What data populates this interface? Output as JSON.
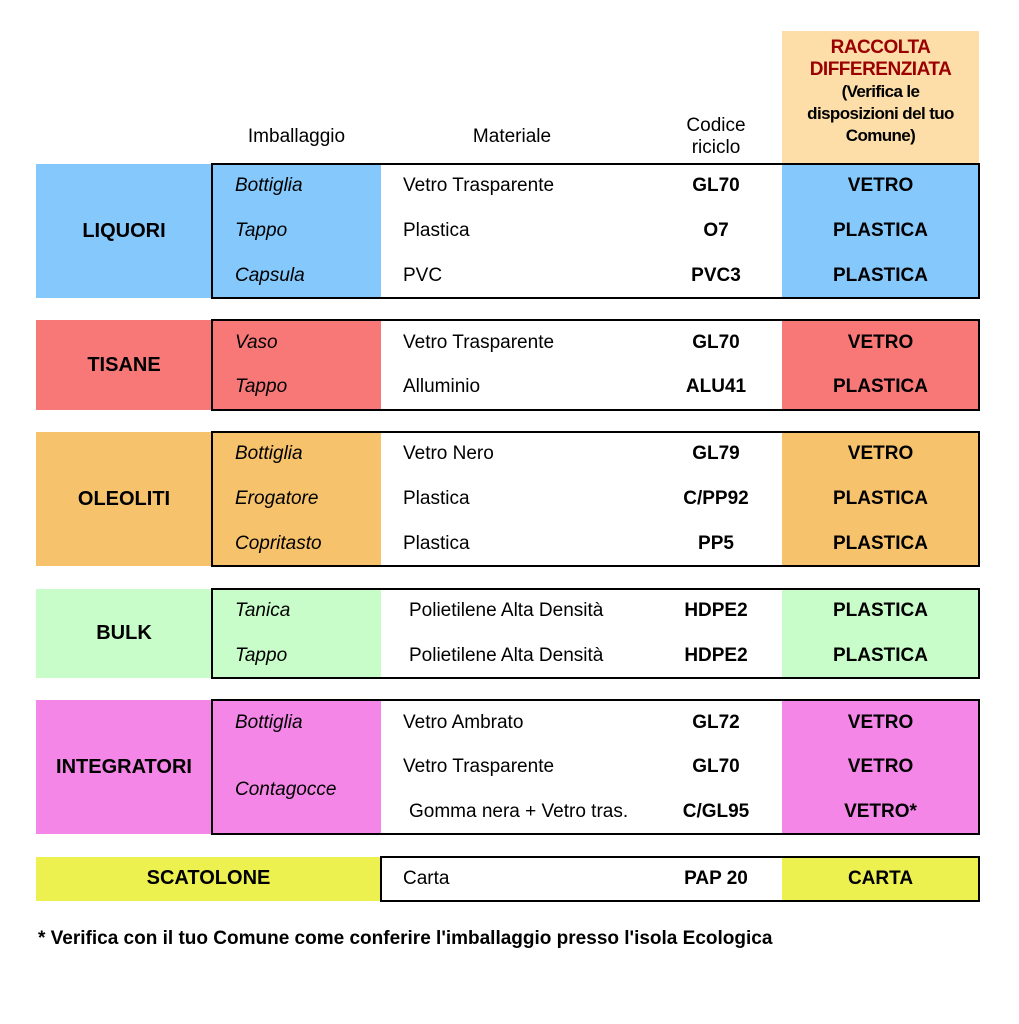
{
  "header": {
    "packaging": "Imballaggio",
    "material": "Materiale",
    "code_line1": "Codice",
    "code_line2": "riciclo",
    "collection_title_line1": "RACCOLTA",
    "collection_title_line2": "DIFFERENZIATA",
    "collection_note_line1": "(Verifica le",
    "collection_note_line2": "disposizioni del tuo",
    "collection_note_line3": "Comune)",
    "collection_bg": "#fddea8",
    "collection_title_color": "#9b0000"
  },
  "groups": [
    {
      "name": "LIQUORI",
      "color": "#85c8fc",
      "items": [
        {
          "packaging": "Bottiglia",
          "rows": [
            {
              "material": "Vetro Trasparente",
              "code": "GL70",
              "bin": "VETRO"
            }
          ]
        },
        {
          "packaging": "Tappo",
          "rows": [
            {
              "material": "Plastica",
              "code": "O7",
              "bin": "PLASTICA"
            }
          ]
        },
        {
          "packaging": "Capsula",
          "rows": [
            {
              "material": "PVC",
              "code": "PVC3",
              "bin": "PLASTICA"
            }
          ]
        }
      ]
    },
    {
      "name": "TISANE",
      "color": "#f87878",
      "items": [
        {
          "packaging": "Vaso",
          "rows": [
            {
              "material": "Vetro Trasparente",
              "code": "GL70",
              "bin": "VETRO"
            }
          ]
        },
        {
          "packaging": "Tappo",
          "rows": [
            {
              "material": "Alluminio",
              "code": "ALU41",
              "bin": "PLASTICA"
            }
          ]
        }
      ]
    },
    {
      "name": "OLEOLITI",
      "color": "#f6c26b",
      "items": [
        {
          "packaging": "Bottiglia",
          "rows": [
            {
              "material": "Vetro Nero",
              "code": "GL79",
              "bin": "VETRO"
            }
          ]
        },
        {
          "packaging": "Erogatore",
          "rows": [
            {
              "material": "Plastica",
              "code": "C/PP92",
              "bin": "PLASTICA"
            }
          ]
        },
        {
          "packaging": "Copritasto",
          "rows": [
            {
              "material": "Plastica",
              "code": "PP5",
              "bin": "PLASTICA"
            }
          ]
        }
      ]
    },
    {
      "name": "BULK",
      "color": "#c8fcc8",
      "items": [
        {
          "packaging": "Tanica",
          "rows": [
            {
              "material": "Polietilene Alta Densità",
              "code": "HDPE2",
              "bin": "PLASTICA"
            }
          ]
        },
        {
          "packaging": "Tappo",
          "rows": [
            {
              "material": "Polietilene Alta Densità",
              "code": "HDPE2",
              "bin": "PLASTICA"
            }
          ]
        }
      ]
    },
    {
      "name": "INTEGRATORI",
      "color": "#f386e6",
      "items": [
        {
          "packaging": "Bottiglia",
          "rows": [
            {
              "material": "Vetro Ambrato",
              "code": "GL72",
              "bin": "VETRO"
            }
          ]
        },
        {
          "packaging": "Contagocce",
          "rows": [
            {
              "material": "Vetro Trasparente",
              "code": "GL70",
              "bin": "VETRO"
            },
            {
              "material": "Gomma nera + Vetro tras.",
              "code": "C/GL95",
              "bin": "VETRO*"
            }
          ]
        }
      ]
    },
    {
      "name": "SCATOLONE",
      "color": "#ecf150",
      "wide": true,
      "items": [
        {
          "packaging": "",
          "rows": [
            {
              "material": "Carta",
              "code": "PAP 20",
              "bin": "CARTA"
            }
          ]
        }
      ]
    }
  ],
  "footnote": "* Verifica con il tuo Comune come conferire l'imballaggio presso l'isola Ecologica"
}
